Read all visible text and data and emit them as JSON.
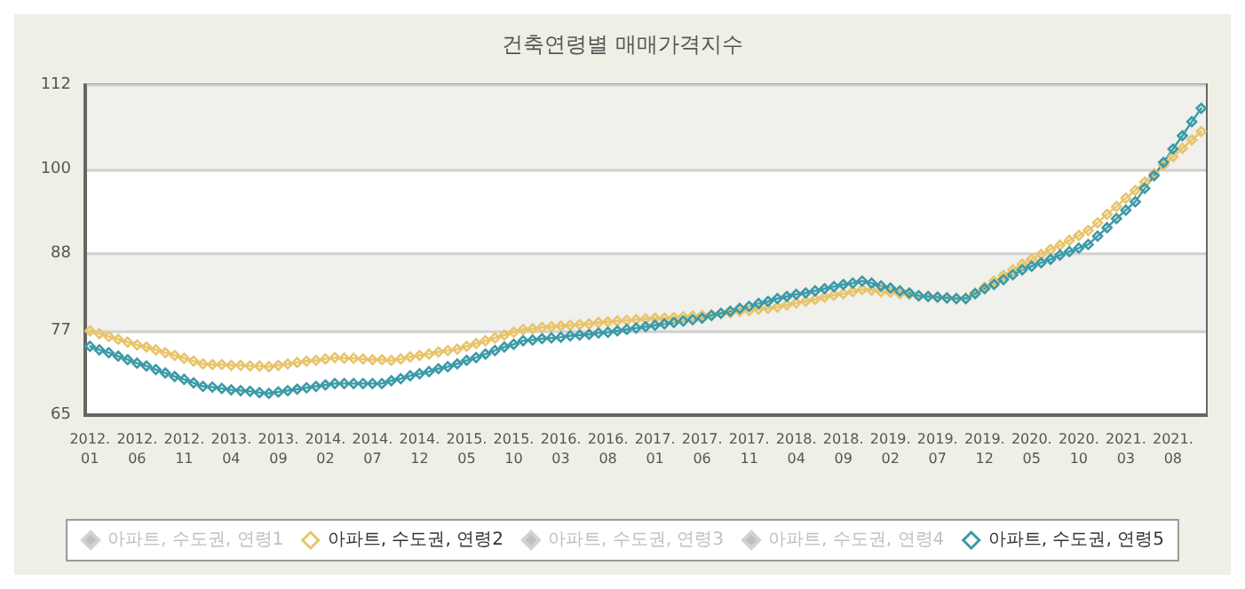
{
  "chart_data": {
    "type": "line",
    "title": "건축연령별 매매가격지수",
    "categories": [
      "2012.\n01",
      null,
      null,
      null,
      null,
      "2012.\n06",
      null,
      null,
      null,
      null,
      "2012.\n11",
      null,
      null,
      null,
      null,
      "2013.\n04",
      null,
      null,
      null,
      null,
      "2013.\n09",
      null,
      null,
      null,
      null,
      "2014.\n02",
      null,
      null,
      null,
      null,
      "2014.\n07",
      null,
      null,
      null,
      null,
      "2014.\n12",
      null,
      null,
      null,
      null,
      "2015.\n05",
      null,
      null,
      null,
      null,
      "2015.\n10",
      null,
      null,
      null,
      null,
      "2016.\n03",
      null,
      null,
      null,
      null,
      "2016.\n08",
      null,
      null,
      null,
      null,
      "2017.\n01",
      null,
      null,
      null,
      null,
      "2017.\n06",
      null,
      null,
      null,
      null,
      "2017.\n11",
      null,
      null,
      null,
      null,
      "2018.\n04",
      null,
      null,
      null,
      null,
      "2018.\n09",
      null,
      null,
      null,
      null,
      "2019.\n02",
      null,
      null,
      null,
      null,
      "2019.\n07",
      null,
      null,
      null,
      null,
      "2019.\n12",
      null,
      null,
      null,
      null,
      "2020.\n05",
      null,
      null,
      null,
      null,
      "2020.\n10",
      null,
      null,
      null,
      null,
      "2021.\n03",
      null,
      null,
      null,
      null,
      "2021.\n08",
      null,
      null,
      null
    ],
    "series": [
      {
        "name": "아파트, 수도권, 연령1",
        "color": "#c8c8c8",
        "values": [
          null,
          null,
          null,
          null,
          null,
          null,
          null,
          null,
          null,
          null,
          null,
          null,
          null,
          null,
          null,
          null,
          null,
          null,
          null,
          null,
          null,
          null,
          null,
          null,
          null,
          null,
          null,
          null,
          null,
          null,
          null,
          null,
          null,
          null,
          null,
          null,
          null,
          null,
          null,
          null,
          null,
          null,
          null,
          null,
          null,
          null,
          null,
          null,
          null,
          null,
          null,
          null,
          null,
          null,
          null,
          null,
          null,
          null,
          null,
          null,
          null,
          null,
          null,
          null,
          null,
          null,
          null,
          null,
          null,
          null,
          null,
          null,
          null,
          null,
          null,
          null,
          null,
          null,
          null,
          null,
          null,
          null,
          null,
          null,
          null,
          null,
          null,
          null,
          null,
          null,
          null,
          null,
          null,
          null,
          null,
          null,
          null,
          null,
          null,
          null,
          null,
          null,
          null,
          null,
          null,
          null,
          null,
          null,
          null,
          null,
          null,
          null,
          null,
          null,
          null,
          null,
          null,
          null,
          null
        ]
      },
      {
        "name": "아파트, 수도권, 연령2",
        "color": "#e8c46a",
        "values": [
          77.0,
          76.6,
          76.2,
          75.8,
          75.4,
          75.0,
          74.7,
          74.3,
          73.9,
          73.5,
          73.1,
          72.7,
          72.3,
          72.2,
          72.2,
          72.1,
          72.1,
          72.0,
          72.0,
          71.9,
          72.1,
          72.3,
          72.5,
          72.7,
          72.8,
          73.0,
          73.2,
          73.1,
          73.1,
          73.0,
          72.9,
          72.9,
          72.8,
          73.0,
          73.3,
          73.5,
          73.7,
          74.0,
          74.2,
          74.4,
          74.8,
          75.2,
          75.6,
          76.0,
          76.4,
          76.8,
          77.2,
          77.3,
          77.5,
          77.6,
          77.7,
          77.8,
          77.9,
          78.0,
          78.2,
          78.3,
          78.4,
          78.5,
          78.6,
          78.7,
          78.8,
          78.8,
          78.9,
          79.0,
          79.1,
          79.2,
          79.3,
          79.5,
          79.6,
          79.8,
          79.9,
          80.1,
          80.2,
          80.4,
          80.7,
          81.0,
          81.2,
          81.5,
          81.8,
          82.1,
          82.3,
          82.6,
          82.9,
          82.8,
          82.6,
          82.5,
          82.3,
          82.2,
          82.0,
          81.9,
          81.8,
          81.7,
          81.6,
          81.6,
          82.4,
          83.2,
          84.1,
          84.9,
          85.7,
          86.5,
          87.2,
          87.9,
          88.6,
          89.2,
          89.9,
          90.6,
          91.3,
          92.4,
          93.6,
          94.7,
          95.9,
          97.0,
          98.2,
          99.4,
          100.6,
          101.8,
          103.0,
          104.2,
          105.4
        ]
      },
      {
        "name": "아파트, 수도권, 연령3",
        "color": "#c8c8c8",
        "values": [
          null,
          null,
          null,
          null,
          null,
          null,
          null,
          null,
          null,
          null,
          null,
          null,
          null,
          null,
          null,
          null,
          null,
          null,
          null,
          null,
          null,
          null,
          null,
          null,
          null,
          null,
          null,
          null,
          null,
          null,
          null,
          null,
          null,
          null,
          null,
          null,
          null,
          null,
          null,
          null,
          null,
          null,
          null,
          null,
          null,
          null,
          null,
          null,
          null,
          null,
          null,
          null,
          null,
          null,
          null,
          null,
          null,
          null,
          null,
          null,
          null,
          null,
          null,
          null,
          null,
          null,
          null,
          null,
          null,
          null,
          null,
          null,
          null,
          null,
          null,
          null,
          null,
          null,
          null,
          null,
          null,
          null,
          null,
          null,
          null,
          null,
          null,
          null,
          null,
          null,
          null,
          null,
          null,
          null,
          null,
          null,
          null,
          null,
          null,
          null,
          null,
          null,
          null,
          null,
          null,
          null,
          null,
          null,
          null,
          null,
          null,
          null,
          null,
          null,
          null,
          null,
          null,
          null,
          null
        ]
      },
      {
        "name": "아파트, 수도권, 연령4",
        "color": "#c8c8c8",
        "values": [
          null,
          null,
          null,
          null,
          null,
          null,
          null,
          null,
          null,
          null,
          null,
          null,
          null,
          null,
          null,
          null,
          null,
          null,
          null,
          null,
          null,
          null,
          null,
          null,
          null,
          null,
          null,
          null,
          null,
          null,
          null,
          null,
          null,
          null,
          null,
          null,
          null,
          null,
          null,
          null,
          null,
          null,
          null,
          null,
          null,
          null,
          null,
          null,
          null,
          null,
          null,
          null,
          null,
          null,
          null,
          null,
          null,
          null,
          null,
          null,
          null,
          null,
          null,
          null,
          null,
          null,
          null,
          null,
          null,
          null,
          null,
          null,
          null,
          null,
          null,
          null,
          null,
          null,
          null,
          null,
          null,
          null,
          null,
          null,
          null,
          null,
          null,
          null,
          null,
          null,
          null,
          null,
          null,
          null,
          null,
          null,
          null,
          null,
          null,
          null,
          null,
          null,
          null,
          null,
          null,
          null,
          null,
          null,
          null,
          null,
          null,
          null,
          null,
          null,
          null,
          null,
          null,
          null,
          null
        ]
      },
      {
        "name": "아파트, 수도권, 연령5",
        "color": "#3a9aa8",
        "values": [
          74.8,
          74.3,
          73.9,
          73.4,
          72.9,
          72.4,
          72.0,
          71.5,
          71.0,
          70.5,
          70.1,
          69.6,
          69.1,
          69.0,
          68.8,
          68.6,
          68.5,
          68.4,
          68.2,
          68.1,
          68.3,
          68.5,
          68.7,
          68.9,
          69.1,
          69.3,
          69.5,
          69.5,
          69.5,
          69.5,
          69.5,
          69.5,
          69.9,
          70.2,
          70.6,
          70.9,
          71.2,
          71.6,
          71.9,
          72.3,
          72.8,
          73.2,
          73.7,
          74.2,
          74.7,
          75.1,
          75.6,
          75.7,
          75.9,
          76.0,
          76.1,
          76.3,
          76.4,
          76.5,
          76.7,
          76.8,
          77.0,
          77.2,
          77.4,
          77.6,
          77.8,
          78.0,
          78.2,
          78.4,
          78.6,
          78.8,
          79.2,
          79.5,
          79.8,
          80.2,
          80.5,
          80.9,
          81.2,
          81.6,
          81.9,
          82.2,
          82.4,
          82.7,
          83.0,
          83.3,
          83.6,
          83.8,
          84.1,
          83.8,
          83.4,
          83.1,
          82.7,
          82.4,
          82.0,
          81.9,
          81.8,
          81.7,
          81.6,
          81.6,
          82.3,
          83.0,
          83.6,
          84.3,
          85.0,
          85.7,
          86.2,
          86.7,
          87.2,
          87.8,
          88.3,
          88.8,
          89.3,
          90.5,
          91.7,
          93.0,
          94.2,
          95.4,
          97.3,
          99.1,
          101.0,
          102.9,
          104.8,
          106.8,
          108.7
        ]
      }
    ],
    "ylim": [
      65,
      112
    ],
    "yticks": [
      65,
      77,
      88,
      100,
      112
    ],
    "grid": "y",
    "legend": "bottom",
    "marker": "diamond",
    "line_style": "solid"
  }
}
